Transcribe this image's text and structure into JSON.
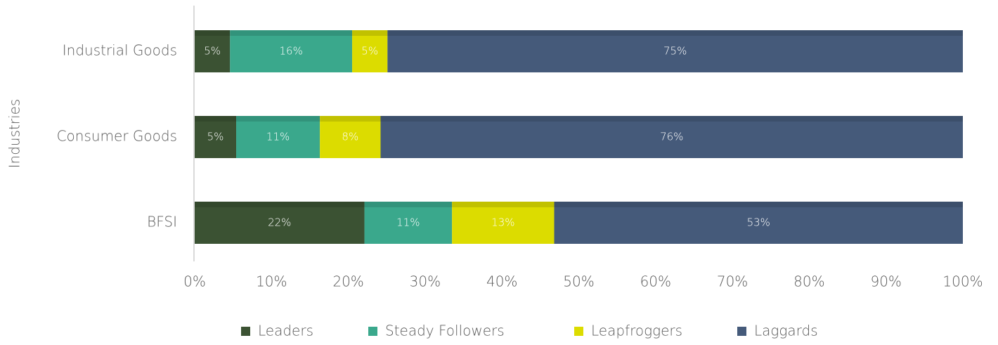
{
  "chart_data": {
    "type": "stacked_barh",
    "y_axis_label": "Industries",
    "categories": [
      "Industrial Goods",
      "Consumer Goods",
      "BFSI"
    ],
    "series": [
      {
        "name": "Leaders",
        "color": "#3b5233",
        "values": [
          4.6,
          5.4,
          22.1
        ],
        "value_labels": [
          "5%",
          "5%",
          "22%"
        ]
      },
      {
        "name": "Steady Followers",
        "color": "#3aa88c",
        "values": [
          15.9,
          10.9,
          11.4
        ],
        "value_labels": [
          "16%",
          "11%",
          "11%"
        ]
      },
      {
        "name": "Leapfroggers",
        "color": "#dcdc00",
        "values": [
          4.6,
          7.9,
          13.3
        ],
        "value_labels": [
          "5%",
          "8%",
          "13%"
        ]
      },
      {
        "name": "Laggards",
        "color": "#455a7a",
        "values": [
          74.9,
          75.8,
          53.2
        ],
        "value_labels": [
          "75%",
          "76%",
          "53%"
        ]
      }
    ],
    "xlim": [
      0,
      100
    ],
    "xticks": [
      {
        "value": 0,
        "label": "0%"
      },
      {
        "value": 10,
        "label": "10%"
      },
      {
        "value": 20,
        "label": "20%"
      },
      {
        "value": 30,
        "label": "30%"
      },
      {
        "value": 40,
        "label": "40%"
      },
      {
        "value": 50,
        "label": "50%"
      },
      {
        "value": 60,
        "label": "60%"
      },
      {
        "value": 70,
        "label": "70%"
      },
      {
        "value": 80,
        "label": "80%"
      },
      {
        "value": 90,
        "label": "90%"
      },
      {
        "value": 100,
        "label": "100%"
      }
    ],
    "legend": "bottom"
  }
}
